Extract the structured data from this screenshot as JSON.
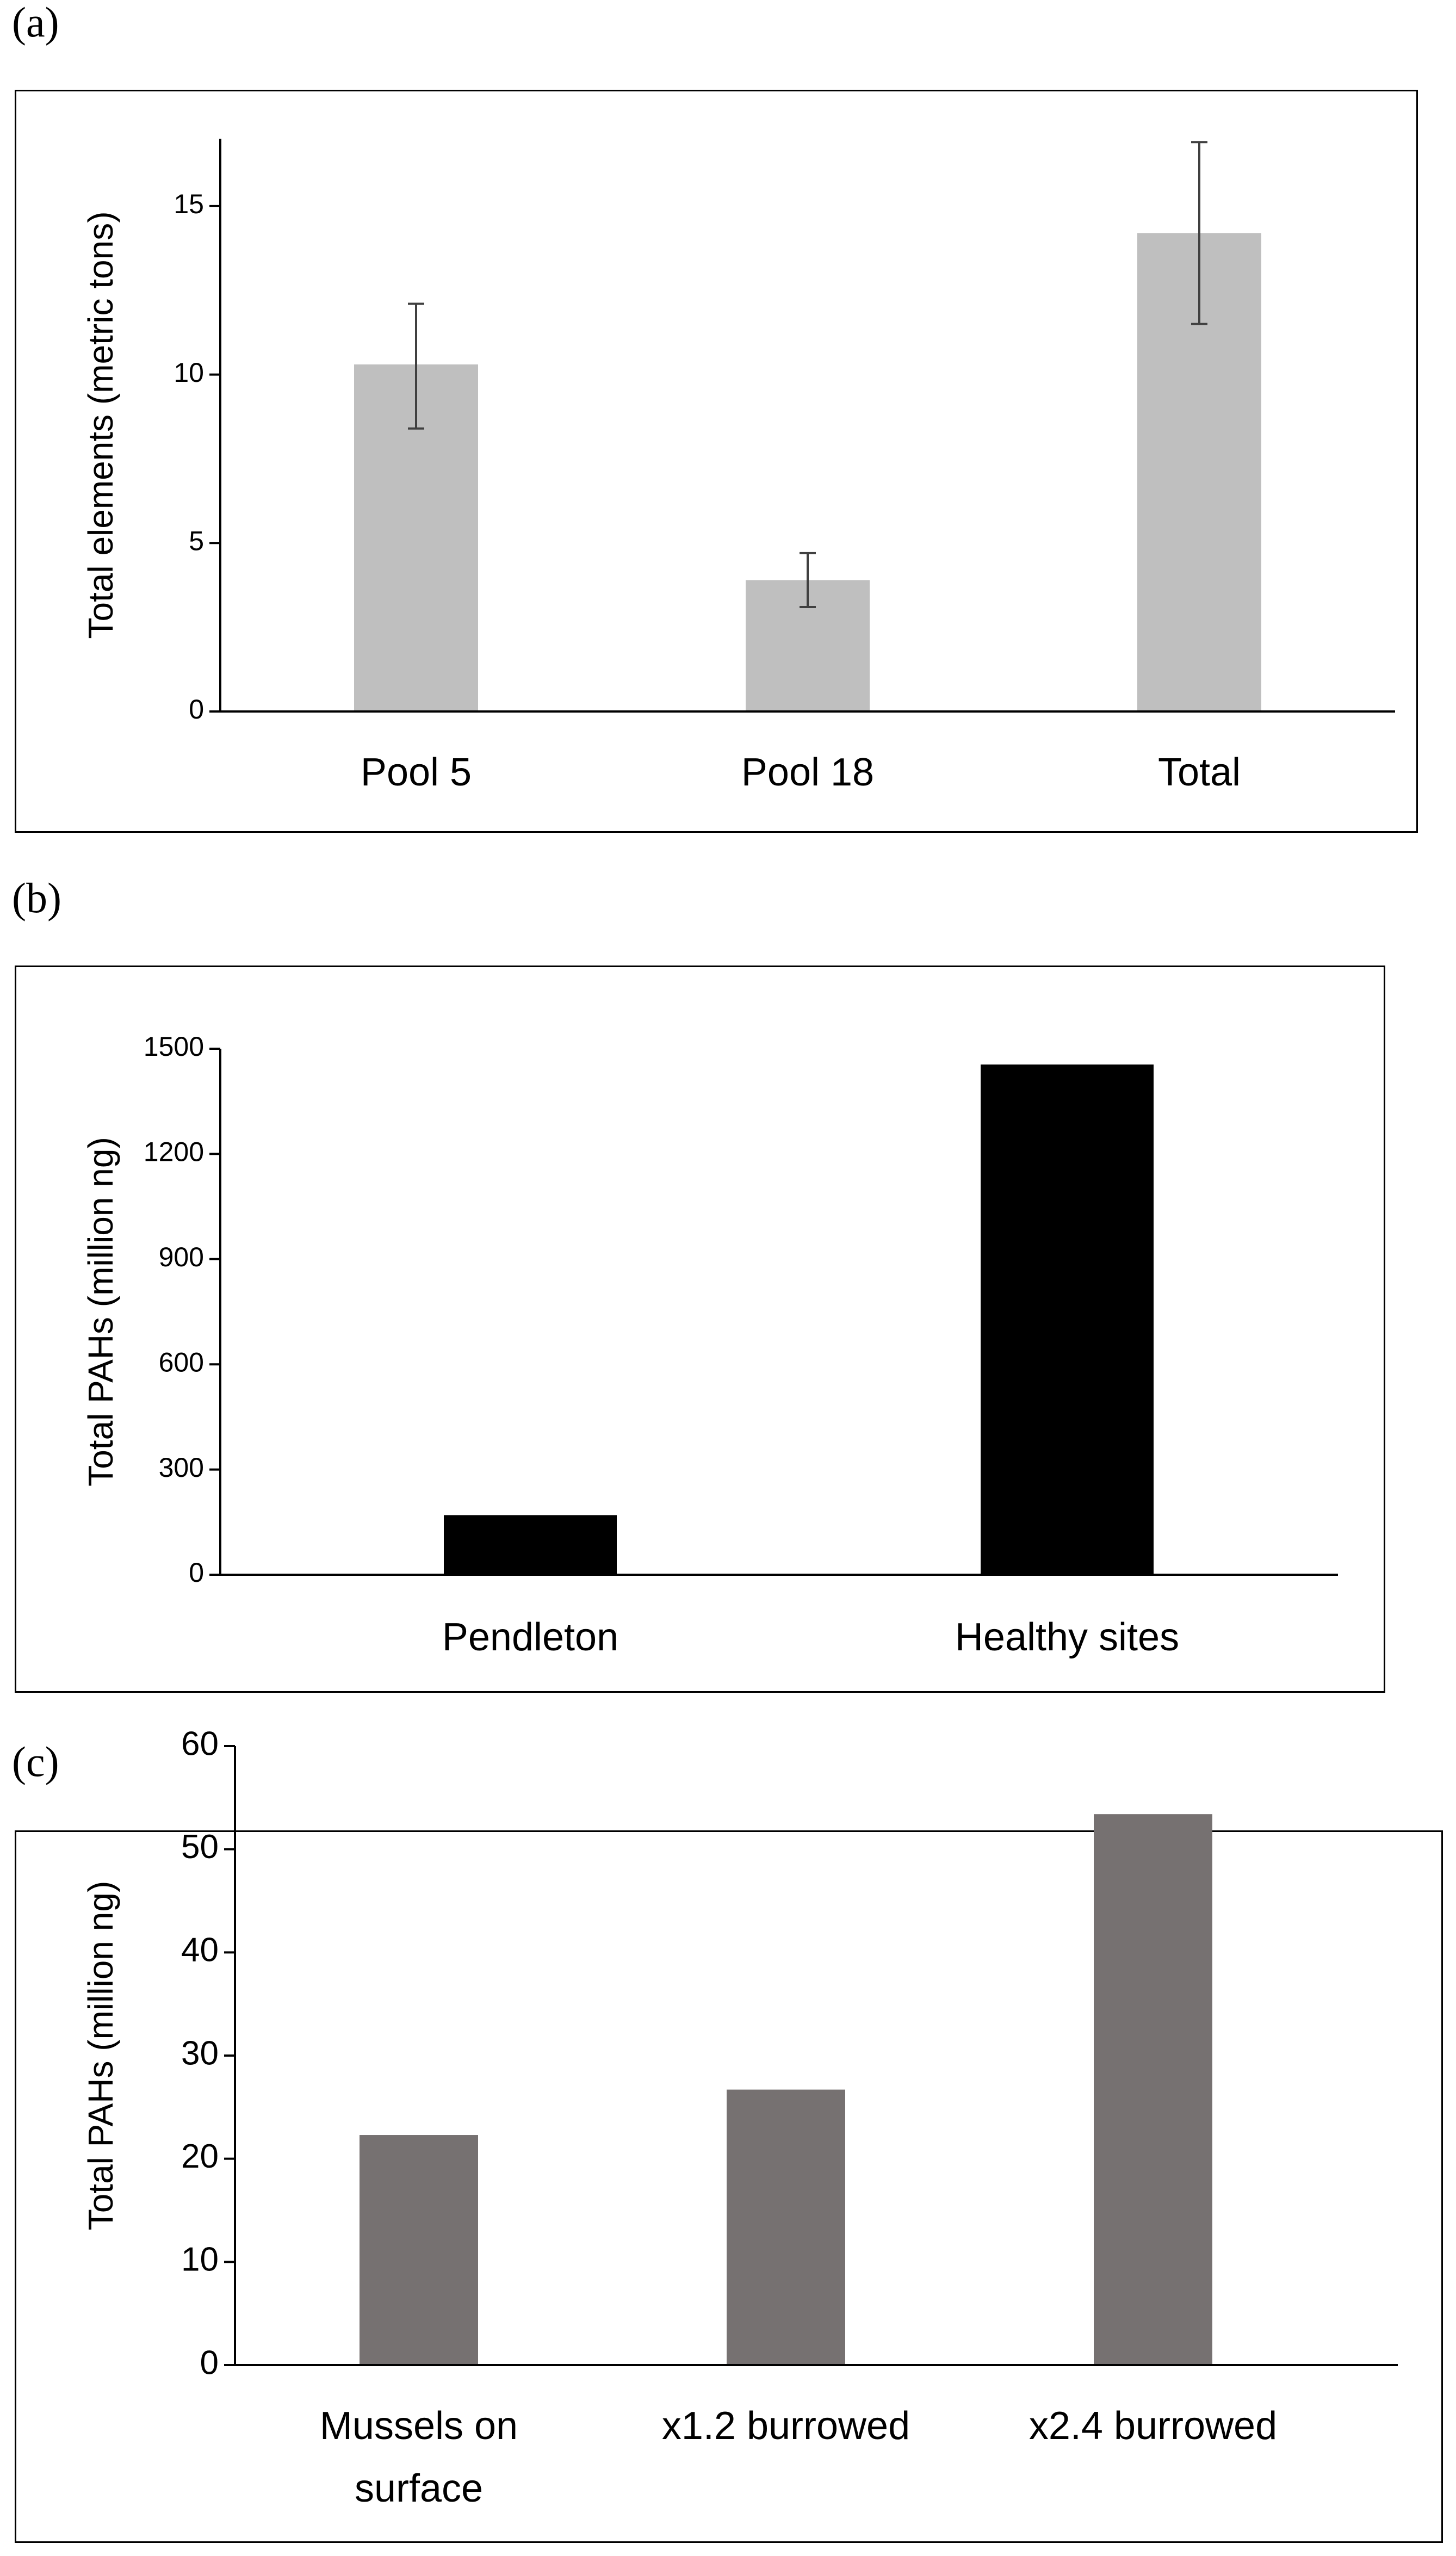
{
  "chart_data": [
    {
      "panel_label": "(a)",
      "type": "bar",
      "categories": [
        "Pool 5",
        "Pool 18",
        "Total"
      ],
      "values": [
        10.3,
        3.9,
        14.2
      ],
      "error_low": [
        8.4,
        3.1,
        11.5
      ],
      "error_high": [
        12.1,
        4.7,
        16.9
      ],
      "ylabel": "Total elements (metric tons)",
      "xlabel": "",
      "ylim": [
        0,
        17
      ],
      "yticks": [
        "0",
        "5",
        "10",
        "15"
      ],
      "ytick_values": [
        0,
        5,
        10,
        15
      ],
      "bar_color": "#bfbfbf",
      "grid": false,
      "legend": "none"
    },
    {
      "panel_label": "(b)",
      "type": "bar",
      "categories": [
        "Pendleton",
        "Healthy sites"
      ],
      "values": [
        170,
        1455
      ],
      "ylabel": "Total PAHs (million ng)",
      "xlabel": "",
      "ylim": [
        0,
        1500
      ],
      "yticks": [
        "0",
        "300",
        "600",
        "900",
        "1200",
        "1500"
      ],
      "ytick_values": [
        0,
        300,
        600,
        900,
        1200,
        1500
      ],
      "bar_color": "#000000",
      "grid": false,
      "legend": "none"
    },
    {
      "panel_label": "(c)",
      "type": "bar",
      "categories": [
        [
          "Mussels on",
          "surface"
        ],
        [
          "x1.2 burrowed"
        ],
        [
          "x2.4 burrowed"
        ]
      ],
      "values": [
        22.3,
        26.7,
        53.4
      ],
      "ylabel": "Total PAHs (million ng)",
      "xlabel": "",
      "ylim": [
        0,
        60
      ],
      "yticks": [
        "0",
        "10",
        "20",
        "30",
        "40",
        "50",
        "60"
      ],
      "ytick_values": [
        0,
        10,
        20,
        30,
        40,
        50,
        60
      ],
      "bar_color": "#767171",
      "grid": false,
      "legend": "none"
    }
  ]
}
